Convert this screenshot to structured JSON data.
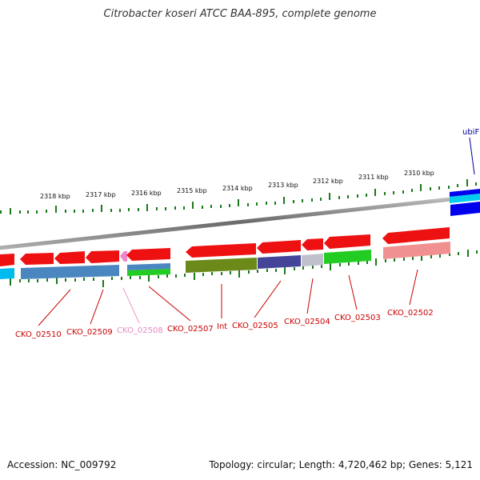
{
  "title": "Citrobacter koseri ATCC BAA-895, complete genome",
  "footer": {
    "accession": "Accession: NC_009792",
    "summary": "Topology: circular; Length: 4,720,462 bp; Genes: 5,121"
  },
  "colors": {
    "red_gene": "#ee1111",
    "tick": "#1a7a1a",
    "label_red": "#cc0000",
    "label_pink": "#e888c8",
    "label_blue": "#000099"
  },
  "kbp_ticks": [
    "2318 kbp",
    "2317 kbp",
    "2316 kbp",
    "2315 kbp",
    "2314 kbp",
    "2313 kbp",
    "2312 kbp",
    "2311 kbp",
    "2310 kbp"
  ],
  "gene_labels": [
    {
      "text": "CKO_02510",
      "tone": "red"
    },
    {
      "text": "CKO_02509",
      "tone": "red"
    },
    {
      "text": "CKO_02508",
      "tone": "pink"
    },
    {
      "text": "CKO_02507",
      "tone": "red"
    },
    {
      "text": "Int",
      "tone": "red"
    },
    {
      "text": "CKO_02505",
      "tone": "red"
    },
    {
      "text": "CKO_02504",
      "tone": "red"
    },
    {
      "text": "CKO_02503",
      "tone": "red"
    },
    {
      "text": "CKO_02502",
      "tone": "red"
    },
    {
      "text": "ubiF",
      "tone": "blue"
    }
  ]
}
